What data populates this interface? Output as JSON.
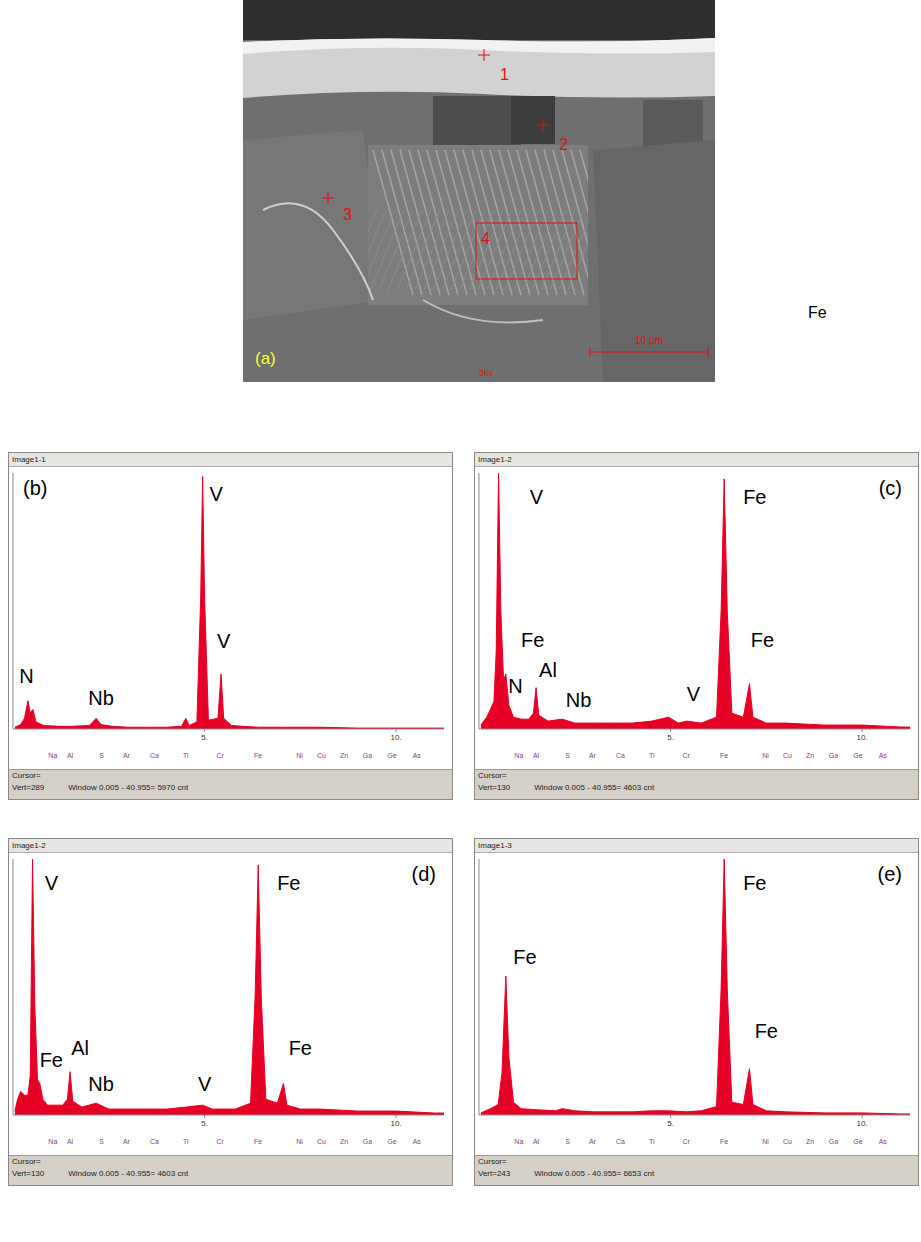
{
  "micrograph": {
    "panel_label": "(a)",
    "points": [
      "1",
      "2",
      "3"
    ],
    "region": "4",
    "magnification": "3kx",
    "scale_bar": "10 µm",
    "side_text": "Fe"
  },
  "chart_data": [
    {
      "type": "area",
      "title": "Image1-1",
      "panel_label": "(b)",
      "color": "#e60026",
      "tick_labels": "x",
      "grid": false,
      "xlim": [
        0,
        11.25
      ],
      "xticks": [
        {
          "value": 5,
          "label": "5."
        },
        {
          "value": 10,
          "label": "10."
        }
      ],
      "ylim": [
        0,
        289
      ],
      "x": [
        0.05,
        0.2,
        0.3,
        0.39,
        0.45,
        0.52,
        0.6,
        0.8,
        1.2,
        1.5,
        2.0,
        2.17,
        2.3,
        2.6,
        3.0,
        3.5,
        4.0,
        4.4,
        4.51,
        4.6,
        4.8,
        4.9,
        4.95,
        5.0,
        5.1,
        5.35,
        5.43,
        5.5,
        5.7,
        6.0,
        6.4,
        7.0,
        8.0,
        9.0,
        10.0,
        11.0,
        11.25
      ],
      "values": [
        2,
        5,
        12,
        32,
        18,
        22,
        8,
        4,
        3,
        3,
        4,
        12,
        5,
        3,
        2,
        2,
        2,
        3,
        12,
        4,
        8,
        150,
        285,
        150,
        10,
        12,
        62,
        12,
        4,
        3,
        2,
        2,
        2,
        1,
        1,
        1,
        1
      ],
      "annotations": [
        {
          "text": "N",
          "x": 0.35,
          "y": 60
        },
        {
          "text": "Nb",
          "x": 2.3,
          "y": 35
        },
        {
          "text": "V",
          "x": 5.3,
          "y": 265
        },
        {
          "text": "V",
          "x": 5.5,
          "y": 100
        }
      ],
      "element_markers": [
        {
          "label": "Na",
          "value": 1.04
        },
        {
          "label": "Al",
          "value": 1.49
        },
        {
          "label": "S",
          "value": 2.31
        },
        {
          "label": "Ar",
          "value": 2.96
        },
        {
          "label": "Ca",
          "value": 3.69
        },
        {
          "label": "Ti",
          "value": 4.51
        },
        {
          "label": "Cr",
          "value": 5.41
        },
        {
          "label": "Fe",
          "value": 6.4
        },
        {
          "label": "Ni",
          "value": 7.48
        },
        {
          "label": "Cu",
          "value": 8.05
        },
        {
          "label": "Zn",
          "value": 8.64
        },
        {
          "label": "Ga",
          "value": 9.25
        },
        {
          "label": "Ge",
          "value": 9.89
        },
        {
          "label": "As",
          "value": 10.54
        }
      ],
      "footer": [
        "Cursor=",
        "Vert=289",
        "Window 0.005 - 40.955= 5970 cnt"
      ]
    },
    {
      "type": "area",
      "title": "Image1-2",
      "panel_label": "(c)",
      "color": "#e60026",
      "tick_labels": "x",
      "grid": false,
      "xlim": [
        0,
        11.25
      ],
      "xticks": [
        {
          "value": 5,
          "label": "5."
        },
        {
          "value": 10,
          "label": "10."
        }
      ],
      "ylim": [
        0,
        130
      ],
      "x": [
        0.05,
        0.2,
        0.3,
        0.39,
        0.45,
        0.51,
        0.57,
        0.64,
        0.7,
        0.78,
        0.9,
        1.1,
        1.3,
        1.42,
        1.49,
        1.56,
        1.8,
        2.17,
        2.5,
        3.0,
        3.5,
        4.0,
        4.51,
        4.95,
        5.2,
        5.43,
        5.8,
        6.2,
        6.32,
        6.4,
        6.48,
        6.6,
        6.9,
        7.06,
        7.15,
        7.5,
        8.0,
        9.0,
        10.0,
        11.0,
        11.25
      ],
      "values": [
        2,
        6,
        10,
        14,
        40,
        130,
        60,
        25,
        28,
        12,
        6,
        5,
        5,
        8,
        21,
        7,
        4,
        5,
        3,
        3,
        3,
        3,
        4,
        6,
        3,
        4,
        3,
        6,
        60,
        127,
        60,
        8,
        6,
        23,
        6,
        3,
        3,
        2,
        2,
        1,
        1
      ],
      "annotations": [
        {
          "text": "V",
          "x": 1.5,
          "y": 118
        },
        {
          "text": "Fe",
          "x": 7.2,
          "y": 118
        },
        {
          "text": "Fe",
          "x": 1.4,
          "y": 45
        },
        {
          "text": "Al",
          "x": 1.8,
          "y": 30
        },
        {
          "text": "N",
          "x": 0.95,
          "y": 22
        },
        {
          "text": "Nb",
          "x": 2.6,
          "y": 15
        },
        {
          "text": "V",
          "x": 5.6,
          "y": 18
        },
        {
          "text": "Fe",
          "x": 7.4,
          "y": 45
        }
      ],
      "element_markers": [
        {
          "label": "Na",
          "value": 1.04
        },
        {
          "label": "Al",
          "value": 1.49
        },
        {
          "label": "S",
          "value": 2.31
        },
        {
          "label": "Ar",
          "value": 2.96
        },
        {
          "label": "Ca",
          "value": 3.69
        },
        {
          "label": "Ti",
          "value": 4.51
        },
        {
          "label": "Cr",
          "value": 5.41
        },
        {
          "label": "Fe",
          "value": 6.4
        },
        {
          "label": "Ni",
          "value": 7.48
        },
        {
          "label": "Cu",
          "value": 8.05
        },
        {
          "label": "Zn",
          "value": 8.64
        },
        {
          "label": "Ga",
          "value": 9.25
        },
        {
          "label": "Ge",
          "value": 9.89
        },
        {
          "label": "As",
          "value": 10.54
        }
      ],
      "footer": [
        "Cursor=",
        "Vert=130",
        "Window 0.005 - 40.955= 4603 cnt"
      ]
    },
    {
      "type": "area",
      "title": "Image1-2",
      "panel_label": "(d)",
      "color": "#e60026",
      "tick_labels": "x",
      "grid": false,
      "xlim": [
        0,
        11.25
      ],
      "xticks": [
        {
          "value": 5,
          "label": "5."
        },
        {
          "value": 10,
          "label": "10."
        }
      ],
      "ylim": [
        0,
        130
      ],
      "x": [
        0.05,
        0.12,
        0.2,
        0.3,
        0.39,
        0.45,
        0.51,
        0.57,
        0.64,
        0.7,
        0.78,
        0.9,
        1.1,
        1.3,
        1.42,
        1.49,
        1.56,
        1.8,
        2.17,
        2.5,
        3.0,
        3.5,
        4.0,
        4.51,
        4.95,
        5.2,
        5.43,
        5.8,
        6.2,
        6.32,
        6.4,
        6.48,
        6.6,
        6.9,
        7.06,
        7.15,
        7.5,
        8.0,
        9.0,
        10.0,
        11.0,
        11.25
      ],
      "values": [
        2,
        8,
        12,
        10,
        10,
        20,
        130,
        55,
        18,
        16,
        8,
        5,
        5,
        5,
        8,
        22,
        7,
        4,
        6,
        3,
        3,
        3,
        3,
        4,
        5,
        3,
        3,
        3,
        6,
        60,
        127,
        60,
        8,
        6,
        16,
        5,
        3,
        3,
        2,
        2,
        1,
        1
      ],
      "annotations": [
        {
          "text": "V",
          "x": 1.0,
          "y": 118
        },
        {
          "text": "Fe",
          "x": 7.2,
          "y": 118
        },
        {
          "text": "Nb",
          "x": 2.3,
          "y": 16
        },
        {
          "text": "Fe",
          "x": 1.0,
          "y": 28
        },
        {
          "text": "Al",
          "x": 1.75,
          "y": 34
        },
        {
          "text": "V",
          "x": 5.0,
          "y": 16
        },
        {
          "text": "Fe",
          "x": 7.5,
          "y": 34
        }
      ],
      "element_markers": [
        {
          "label": "Na",
          "value": 1.04
        },
        {
          "label": "Al",
          "value": 1.49
        },
        {
          "label": "S",
          "value": 2.31
        },
        {
          "label": "Ar",
          "value": 2.96
        },
        {
          "label": "Ca",
          "value": 3.69
        },
        {
          "label": "Ti",
          "value": 4.51
        },
        {
          "label": "Cr",
          "value": 5.41
        },
        {
          "label": "Fe",
          "value": 6.4
        },
        {
          "label": "Ni",
          "value": 7.48
        },
        {
          "label": "Cu",
          "value": 8.05
        },
        {
          "label": "Zn",
          "value": 8.64
        },
        {
          "label": "Ga",
          "value": 9.25
        },
        {
          "label": "Ge",
          "value": 9.89
        },
        {
          "label": "As",
          "value": 10.54
        }
      ],
      "footer": [
        "Cursor=",
        "Vert=130",
        "Window 0.005 - 40.955= 4603 cnt"
      ]
    },
    {
      "type": "area",
      "title": "Image1-3",
      "panel_label": "(e)",
      "color": "#e60026",
      "tick_labels": "x",
      "grid": false,
      "xlim": [
        0,
        11.25
      ],
      "xticks": [
        {
          "value": 5,
          "label": "5."
        },
        {
          "value": 10,
          "label": "10."
        }
      ],
      "ylim": [
        0,
        243
      ],
      "x": [
        0.05,
        0.3,
        0.5,
        0.6,
        0.7,
        0.78,
        0.9,
        1.1,
        1.5,
        2.0,
        2.17,
        2.5,
        3.0,
        3.5,
        4.0,
        4.51,
        4.95,
        5.4,
        5.8,
        6.2,
        6.32,
        6.4,
        6.48,
        6.6,
        6.9,
        7.06,
        7.15,
        7.5,
        8.0,
        9.0,
        10.0,
        11.0,
        11.25
      ],
      "values": [
        2,
        6,
        10,
        40,
        132,
        55,
        12,
        6,
        5,
        4,
        6,
        4,
        3,
        3,
        3,
        4,
        4,
        3,
        4,
        8,
        120,
        243,
        120,
        12,
        10,
        44,
        10,
        4,
        3,
        2,
        2,
        1,
        1
      ],
      "annotations": [
        {
          "text": "Fe",
          "x": 7.2,
          "y": 220
        },
        {
          "text": "Fe",
          "x": 1.2,
          "y": 150
        },
        {
          "text": "Fe",
          "x": 7.5,
          "y": 80
        }
      ],
      "element_markers": [
        {
          "label": "Na",
          "value": 1.04
        },
        {
          "label": "Al",
          "value": 1.49
        },
        {
          "label": "S",
          "value": 2.31
        },
        {
          "label": "Ar",
          "value": 2.96
        },
        {
          "label": "Ca",
          "value": 3.69
        },
        {
          "label": "Ti",
          "value": 4.51
        },
        {
          "label": "Cr",
          "value": 5.41
        },
        {
          "label": "Fe",
          "value": 6.4
        },
        {
          "label": "Ni",
          "value": 7.48
        },
        {
          "label": "Cu",
          "value": 8.05
        },
        {
          "label": "Zn",
          "value": 8.64
        },
        {
          "label": "Ga",
          "value": 9.25
        },
        {
          "label": "Ge",
          "value": 9.89
        },
        {
          "label": "As",
          "value": 10.54
        }
      ],
      "footer": [
        "Cursor=",
        "Vert=243",
        "Window 0.005 - 40.955= 6653 cnt"
      ]
    }
  ]
}
